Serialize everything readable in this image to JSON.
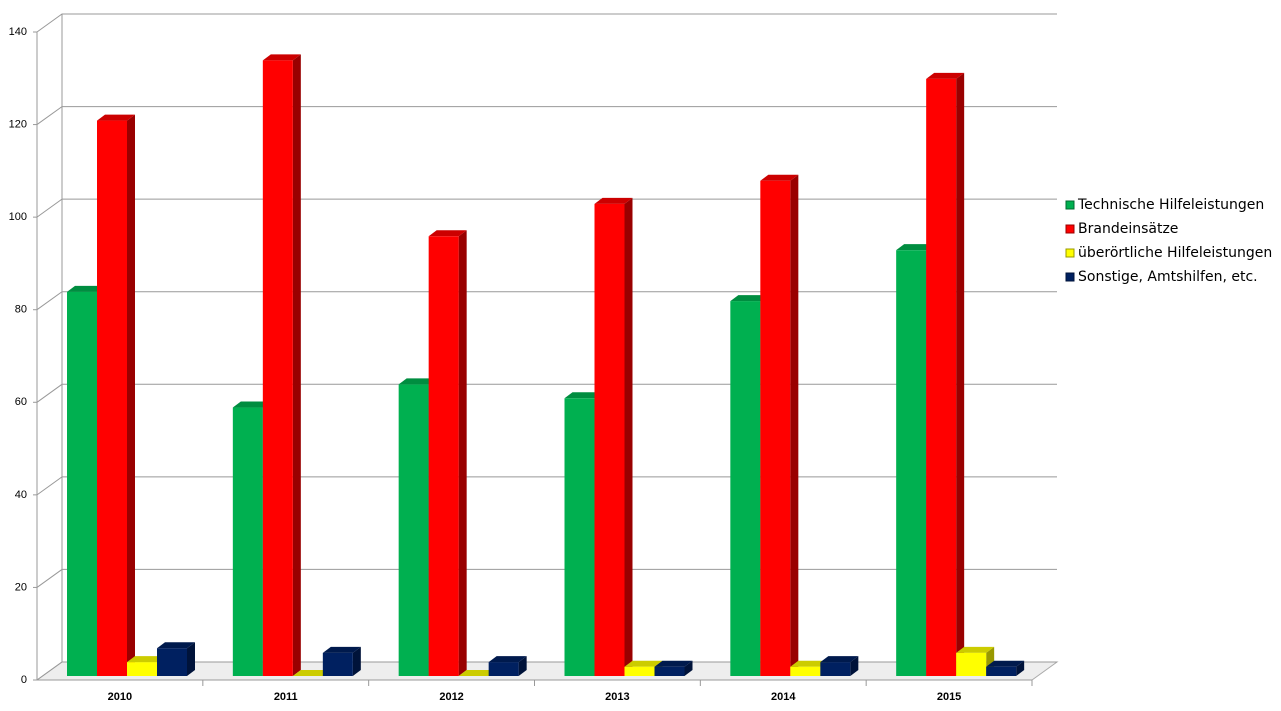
{
  "chart_data": {
    "type": "bar3d",
    "categories": [
      "2010",
      "2011",
      "2012",
      "2013",
      "2014",
      "2015"
    ],
    "series": [
      {
        "name": "Technische Hilfeleistungen",
        "color": "#00b050",
        "values": [
          83,
          58,
          63,
          60,
          81,
          92
        ]
      },
      {
        "name": "Brandeinsätze",
        "color": "#ff0000",
        "values": [
          120,
          133,
          95,
          102,
          107,
          129
        ]
      },
      {
        "name": "überörtliche Hilfeleistungen",
        "color": "#ffff00",
        "values": [
          3,
          0,
          0,
          2,
          2,
          5
        ]
      },
      {
        "name": "Sonstige, Amtshilfen, etc.",
        "color": "#002060",
        "values": [
          6,
          5,
          3,
          2,
          3,
          2
        ]
      }
    ],
    "ylim": [
      0,
      140
    ],
    "yticks": [
      0,
      20,
      40,
      60,
      80,
      100,
      120,
      140
    ],
    "grid": true,
    "legend": "right"
  }
}
